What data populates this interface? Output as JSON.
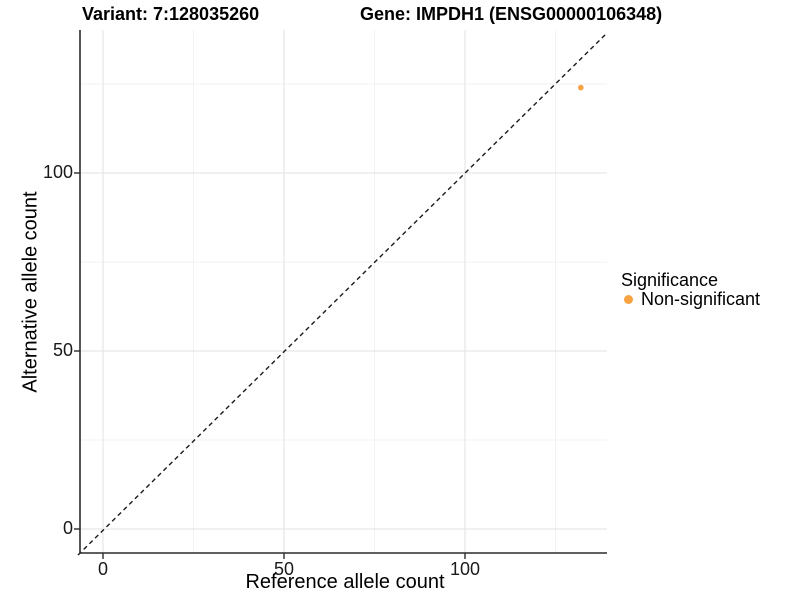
{
  "chart": {
    "title_left": "Variant: 7:128035260",
    "title_right": "Gene: IMPDH1 (ENSG00000106348)",
    "x_axis": {
      "label": "Reference allele count",
      "ticks": [
        "0",
        "50",
        "100"
      ]
    },
    "y_axis": {
      "label": "Alternative allele count",
      "ticks": [
        "0",
        "50",
        "100"
      ]
    },
    "legend": {
      "title": "Significance",
      "items": [
        {
          "label": "Non-significant",
          "color": "#F9A242",
          "marker": "circle-icon"
        }
      ]
    }
  },
  "chart_data": {
    "type": "scatter",
    "title": "Variant: 7:128035260 | Gene: IMPDH1 (ENSG00000106348)",
    "xlabel": "Reference allele count",
    "ylabel": "Alternative allele count",
    "xlim": [
      -6,
      140
    ],
    "ylim": [
      -7,
      140
    ],
    "x_ticks": [
      0,
      50,
      100
    ],
    "y_ticks": [
      0,
      50,
      100
    ],
    "grid": "major-and-minor, light gray on white",
    "legend_position": "right",
    "series": [
      {
        "name": "Non-significant",
        "color": "#F9A242",
        "points": [
          {
            "x": 132,
            "y": 124
          }
        ]
      }
    ],
    "reference_line": {
      "type": "identity y=x",
      "style": "dashed",
      "color": "#1a1a1a"
    }
  },
  "colors": {
    "point_orange": "#F9A242",
    "grid_major": "#E6E6E6",
    "grid_minor": "#F2F2F2",
    "axis_line": "#2b2b2b"
  }
}
